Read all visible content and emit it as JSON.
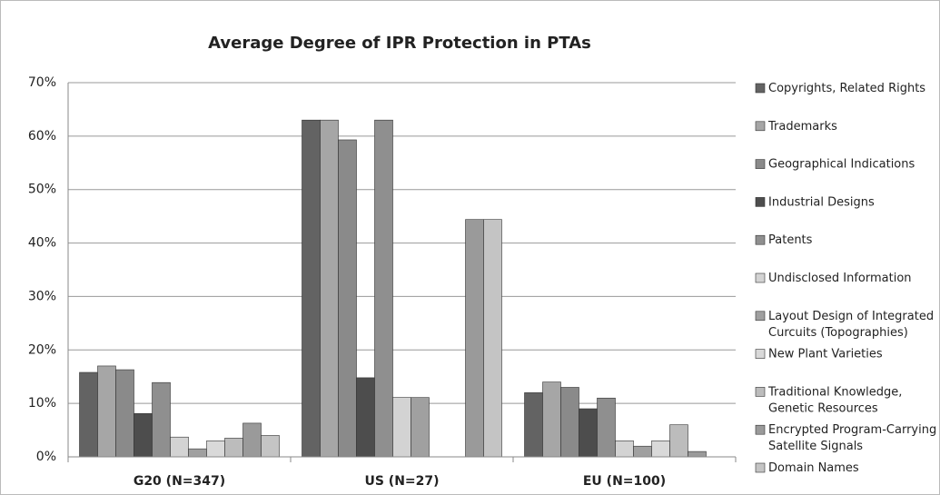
{
  "chart_data": {
    "type": "bar",
    "title": "Average Degree of IPR Protection in PTAs",
    "categories": [
      "G20 (N=347)",
      "US (N=27)",
      "EU (N=100)"
    ],
    "series": [
      {
        "name": "Copyrights, Related Rights",
        "color": "#636363",
        "values": [
          15.8,
          63.0,
          12.0
        ]
      },
      {
        "name": "Trademarks",
        "color": "#a6a6a6",
        "values": [
          17.0,
          63.0,
          14.0
        ]
      },
      {
        "name": "Geographical Indications",
        "color": "#8a8a8a",
        "values": [
          16.3,
          59.3,
          13.0
        ]
      },
      {
        "name": "Industrial Designs",
        "color": "#4d4d4d",
        "values": [
          8.1,
          14.8,
          9.0
        ]
      },
      {
        "name": "Patents",
        "color": "#8f8f8f",
        "values": [
          13.9,
          63.0,
          11.0
        ]
      },
      {
        "name": "Undisclosed Information",
        "color": "#d3d3d3",
        "values": [
          3.7,
          11.1,
          3.0
        ]
      },
      {
        "name": "Layout Design of Integrated\nCurcuits (Topographies)",
        "color": "#a0a0a0",
        "values": [
          1.5,
          11.1,
          2.0
        ]
      },
      {
        "name": "New Plant Varieties",
        "color": "#d9d9d9",
        "values": [
          3.0,
          0,
          3.0
        ]
      },
      {
        "name": "Traditional Knowledge,\nGenetic Resources",
        "color": "#bcbcbc",
        "values": [
          3.5,
          0,
          6.0
        ]
      },
      {
        "name": "Encrypted Program-Carrying\nSatellite Signals",
        "color": "#9a9a9a",
        "values": [
          6.3,
          44.4,
          1.0
        ]
      },
      {
        "name": "Domain Names",
        "color": "#c4c4c4",
        "values": [
          4.0,
          44.4,
          0
        ]
      }
    ],
    "ylim": [
      0,
      70
    ],
    "yticks": [
      {
        "value": 0,
        "label": "0%"
      },
      {
        "value": 10,
        "label": "10%"
      },
      {
        "value": 20,
        "label": "20%"
      },
      {
        "value": 30,
        "label": "30%"
      },
      {
        "value": 40,
        "label": "40%"
      },
      {
        "value": 50,
        "label": "50%"
      },
      {
        "value": 60,
        "label": "60%"
      },
      {
        "value": 70,
        "label": "70%"
      }
    ],
    "grid": true,
    "legend": "right"
  }
}
